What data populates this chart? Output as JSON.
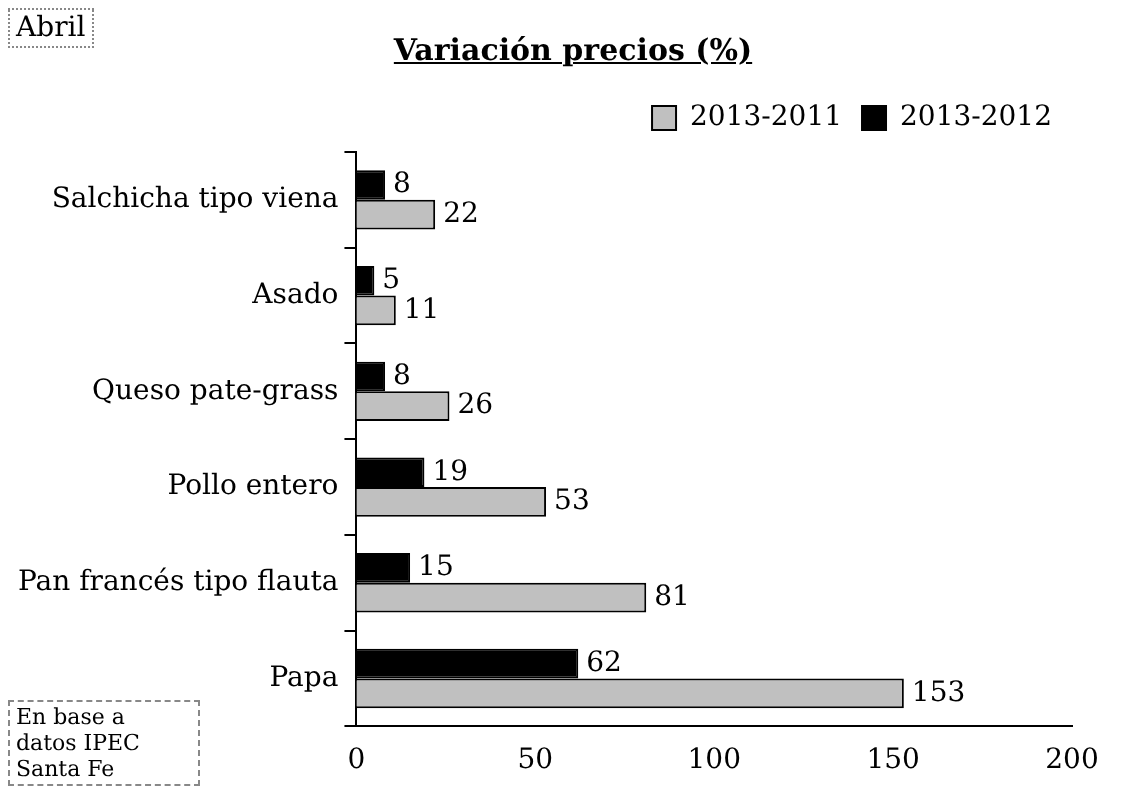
{
  "chart_data": {
    "type": "bar",
    "orientation": "horizontal",
    "title": "Variación precios (%)",
    "categories": [
      "Salchicha tipo viena",
      "Asado",
      "Queso pate-grass",
      "Pollo entero",
      "Pan francés tipo flauta",
      "Papa"
    ],
    "series": [
      {
        "name": "2013-2011",
        "color": "#c0c0c0",
        "values": [
          22,
          11,
          26,
          53,
          81,
          153
        ]
      },
      {
        "name": "2013-2012",
        "color": "#000000",
        "values": [
          8,
          5,
          8,
          19,
          15,
          62
        ]
      }
    ],
    "xlim": [
      0,
      200
    ],
    "xticks": [
      0,
      50,
      100,
      150,
      200
    ],
    "grid": false,
    "legend": "top right",
    "data_labels": true,
    "annotations": [
      "Abril",
      "En base a datos IPEC Santa Fe"
    ]
  }
}
